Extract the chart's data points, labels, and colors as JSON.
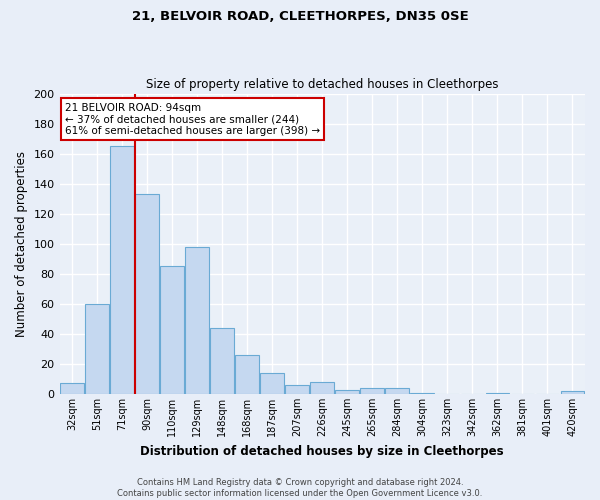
{
  "title1": "21, BELVOIR ROAD, CLEETHORPES, DN35 0SE",
  "title2": "Size of property relative to detached houses in Cleethorpes",
  "xlabel": "Distribution of detached houses by size in Cleethorpes",
  "ylabel": "Number of detached properties",
  "categories": [
    "32sqm",
    "51sqm",
    "71sqm",
    "90sqm",
    "110sqm",
    "129sqm",
    "148sqm",
    "168sqm",
    "187sqm",
    "207sqm",
    "226sqm",
    "245sqm",
    "265sqm",
    "284sqm",
    "304sqm",
    "323sqm",
    "342sqm",
    "362sqm",
    "381sqm",
    "401sqm",
    "420sqm"
  ],
  "values": [
    7,
    60,
    165,
    133,
    85,
    98,
    44,
    26,
    14,
    6,
    8,
    3,
    4,
    4,
    1,
    0,
    0,
    1,
    0,
    0,
    2
  ],
  "bar_color": "#c5d8f0",
  "bar_edge_color": "#6aaad4",
  "fig_bg_color": "#e8eef8",
  "ax_bg_color": "#eaf0f8",
  "grid_color": "#ffffff",
  "red_line_x": 2.5,
  "annotation_text_line1": "21 BELVOIR ROAD: 94sqm",
  "annotation_text_line2": "← 37% of detached houses are smaller (244)",
  "annotation_text_line3": "61% of semi-detached houses are larger (398) →",
  "ylim": [
    0,
    200
  ],
  "yticks": [
    0,
    20,
    40,
    60,
    80,
    100,
    120,
    140,
    160,
    180,
    200
  ],
  "footer1": "Contains HM Land Registry data © Crown copyright and database right 2024.",
  "footer2": "Contains public sector information licensed under the Open Government Licence v3.0."
}
